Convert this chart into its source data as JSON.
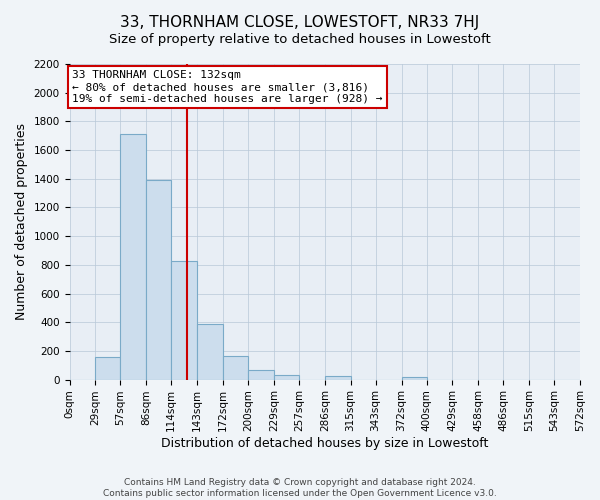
{
  "title": "33, THORNHAM CLOSE, LOWESTOFT, NR33 7HJ",
  "subtitle": "Size of property relative to detached houses in Lowestoft",
  "xlabel": "Distribution of detached houses by size in Lowestoft",
  "ylabel": "Number of detached properties",
  "bar_edges": [
    0,
    29,
    57,
    86,
    114,
    143,
    172,
    200,
    229,
    257,
    286,
    315,
    343,
    372,
    400,
    429,
    458,
    486,
    515,
    543,
    572
  ],
  "bar_heights": [
    0,
    155,
    1710,
    1390,
    825,
    385,
    165,
    65,
    30,
    0,
    25,
    0,
    0,
    20,
    0,
    0,
    0,
    0,
    0,
    0
  ],
  "bar_color": "#ccdded",
  "bar_edgecolor": "#7aaac8",
  "vline_x": 132,
  "vline_color": "#cc0000",
  "annotation_title": "33 THORNHAM CLOSE: 132sqm",
  "annotation_line1": "← 80% of detached houses are smaller (3,816)",
  "annotation_line2": "19% of semi-detached houses are larger (928) →",
  "annotation_box_edgecolor": "#cc0000",
  "ylim": [
    0,
    2200
  ],
  "yticks": [
    0,
    200,
    400,
    600,
    800,
    1000,
    1200,
    1400,
    1600,
    1800,
    2000,
    2200
  ],
  "xtick_labels": [
    "0sqm",
    "29sqm",
    "57sqm",
    "86sqm",
    "114sqm",
    "143sqm",
    "172sqm",
    "200sqm",
    "229sqm",
    "257sqm",
    "286sqm",
    "315sqm",
    "343sqm",
    "372sqm",
    "400sqm",
    "429sqm",
    "458sqm",
    "486sqm",
    "515sqm",
    "543sqm",
    "572sqm"
  ],
  "footer_line1": "Contains HM Land Registry data © Crown copyright and database right 2024.",
  "footer_line2": "Contains public sector information licensed under the Open Government Licence v3.0.",
  "bg_color": "#f0f4f8",
  "plot_bg_color": "#e8eef5",
  "grid_color": "#b8c8d8",
  "title_fontsize": 11,
  "subtitle_fontsize": 9.5,
  "axis_label_fontsize": 9,
  "tick_fontsize": 7.5,
  "annotation_fontsize": 8,
  "footer_fontsize": 6.5
}
